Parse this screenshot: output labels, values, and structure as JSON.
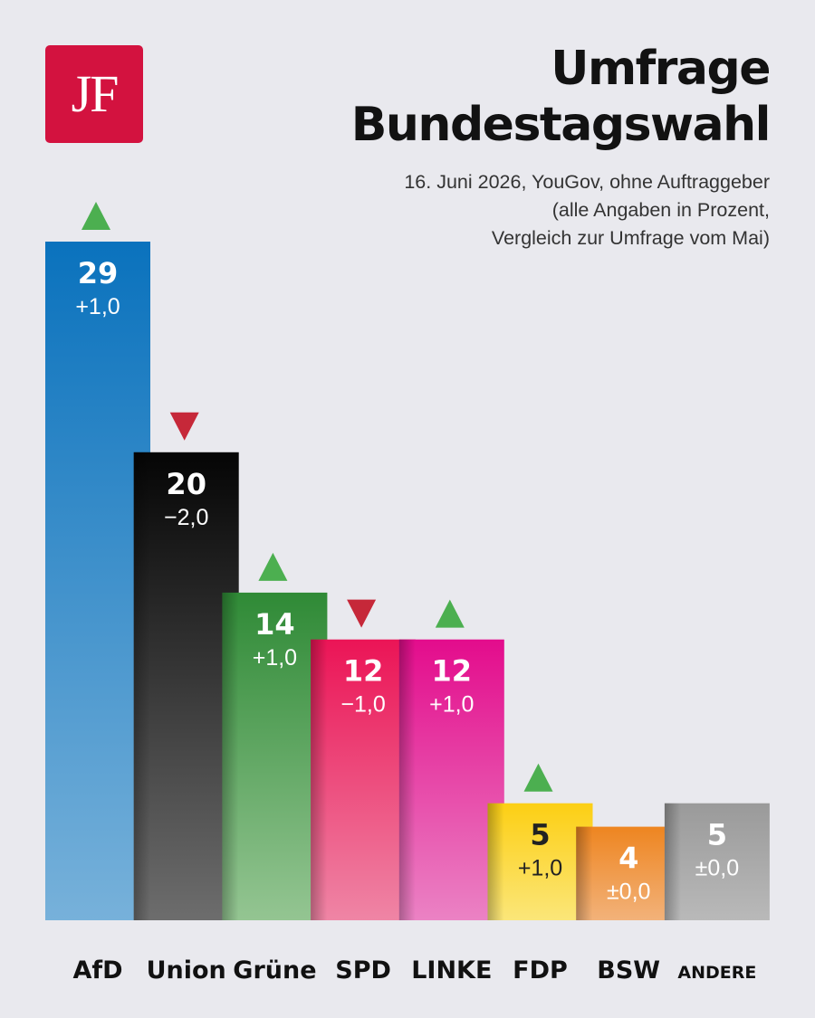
{
  "logo": {
    "text": "JF"
  },
  "header": {
    "title_line1": "Umfrage",
    "title_line2": "Bundestagswahl",
    "subtitle_line1": "16. Juni 2026, YouGov, ohne Auftraggeber",
    "subtitle_line2": "(alle Angaben in Prozent,",
    "subtitle_line3": "Vergleich zur Umfrage vom Mai)"
  },
  "colors": {
    "up_arrow": "#4caf50",
    "down_arrow": "#c62839",
    "background": "#e9e9ee",
    "logo": "#d3123f"
  },
  "chart_data": {
    "type": "bar",
    "title": "Umfrage Bundestagswahl",
    "ylim": [
      0,
      29
    ],
    "categories": [
      "AfD",
      "Union",
      "Grüne",
      "SPD",
      "LINKE",
      "FDP",
      "BSW",
      "ANDERE"
    ],
    "values": [
      29,
      20,
      14,
      12,
      12,
      5,
      4,
      5
    ],
    "changes": [
      "+1,0",
      "−2,0",
      "+1,0",
      "−1,0",
      "+1,0",
      "+1,0",
      "±0,0",
      "±0,0"
    ],
    "trend": [
      "up",
      "down",
      "up",
      "down",
      "up",
      "up",
      "none",
      "none"
    ],
    "bar_colors": [
      {
        "top": "#0a72bd",
        "bottom": "#77b1da"
      },
      {
        "top": "#050505",
        "bottom": "#6d6d6d"
      },
      {
        "top": "#2f8a36",
        "bottom": "#94c592"
      },
      {
        "top": "#eb1456",
        "bottom": "#ef85a5"
      },
      {
        "top": "#e30c8c",
        "bottom": "#eb82c4"
      },
      {
        "top": "#fccf14",
        "bottom": "#fbe679"
      },
      {
        "top": "#ee8520",
        "bottom": "#f2b27a"
      },
      {
        "top": "#9a9a9a",
        "bottom": "#b9b9b9"
      }
    ],
    "label_colors": [
      "#ffffff",
      "#ffffff",
      "#ffffff",
      "#ffffff",
      "#ffffff",
      "#222222",
      "#ffffff",
      "#ffffff"
    ]
  }
}
